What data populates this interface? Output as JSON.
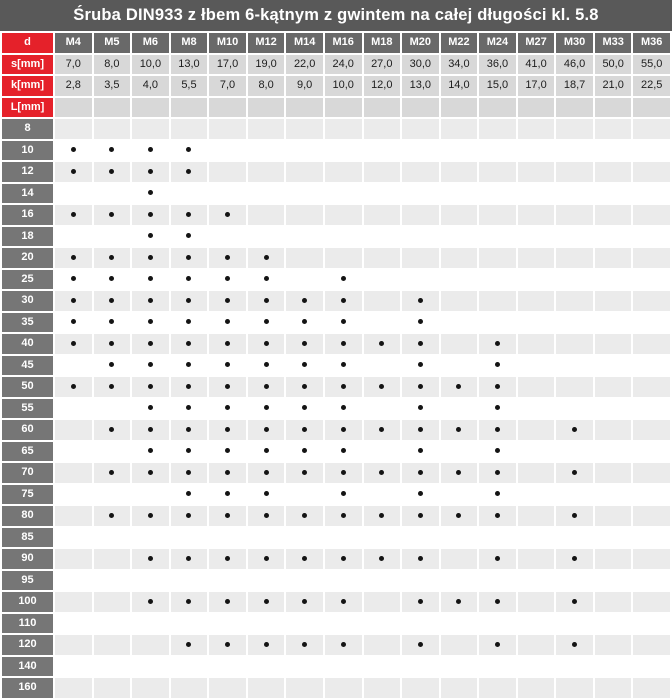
{
  "title": "Śruba DIN933 z łbem 6-kątnym z gwintem na całej długości kl. 5.8",
  "colors": {
    "title_bar": "#595959",
    "header_gray": "#696969",
    "label_gray": "#767676",
    "red_accent": "#e5212a",
    "spec_row": "#d8d8d8",
    "row_alt": "#ebebeb",
    "row_plain": "#ffffff",
    "dot": "#141414"
  },
  "table": {
    "d_label": "d",
    "diameters": [
      "M4",
      "M5",
      "M6",
      "M8",
      "M10",
      "M12",
      "M14",
      "M16",
      "M18",
      "M20",
      "M22",
      "M24",
      "M27",
      "M30",
      "M33",
      "M36"
    ],
    "s_label": "s[mm]",
    "s_values": [
      "7,0",
      "8,0",
      "10,0",
      "13,0",
      "17,0",
      "19,0",
      "22,0",
      "24,0",
      "27,0",
      "30,0",
      "34,0",
      "36,0",
      "41,0",
      "46,0",
      "50,0",
      "55,0"
    ],
    "k_label": "k[mm]",
    "k_values": [
      "2,8",
      "3,5",
      "4,0",
      "5,5",
      "7,0",
      "8,0",
      "9,0",
      "10,0",
      "12,0",
      "13,0",
      "14,0",
      "15,0",
      "17,0",
      "18,7",
      "21,0",
      "22,5"
    ],
    "l_label": "L[mm]",
    "lengths": [
      {
        "length": "8",
        "dots": []
      },
      {
        "length": "10",
        "dots": [
          "M4",
          "M5",
          "M6",
          "M8"
        ]
      },
      {
        "length": "12",
        "dots": [
          "M4",
          "M5",
          "M6",
          "M8"
        ]
      },
      {
        "length": "14",
        "dots": [
          "M6"
        ]
      },
      {
        "length": "16",
        "dots": [
          "M4",
          "M5",
          "M6",
          "M8",
          "M10"
        ]
      },
      {
        "length": "18",
        "dots": [
          "M6",
          "M8"
        ]
      },
      {
        "length": "20",
        "dots": [
          "M4",
          "M5",
          "M6",
          "M8",
          "M10",
          "M12"
        ]
      },
      {
        "length": "25",
        "dots": [
          "M4",
          "M5",
          "M6",
          "M8",
          "M10",
          "M12",
          "M16"
        ]
      },
      {
        "length": "30",
        "dots": [
          "M4",
          "M5",
          "M6",
          "M8",
          "M10",
          "M12",
          "M14",
          "M16",
          "M20"
        ]
      },
      {
        "length": "35",
        "dots": [
          "M4",
          "M5",
          "M6",
          "M8",
          "M10",
          "M12",
          "M14",
          "M16",
          "M20"
        ]
      },
      {
        "length": "40",
        "dots": [
          "M4",
          "M5",
          "M6",
          "M8",
          "M10",
          "M12",
          "M14",
          "M16",
          "M18",
          "M20",
          "M24"
        ]
      },
      {
        "length": "45",
        "dots": [
          "M5",
          "M6",
          "M8",
          "M10",
          "M12",
          "M14",
          "M16",
          "M20",
          "M24"
        ]
      },
      {
        "length": "50",
        "dots": [
          "M4",
          "M5",
          "M6",
          "M8",
          "M10",
          "M12",
          "M14",
          "M16",
          "M18",
          "M20",
          "M22",
          "M24"
        ]
      },
      {
        "length": "55",
        "dots": [
          "M6",
          "M8",
          "M10",
          "M12",
          "M14",
          "M16",
          "M20",
          "M24"
        ]
      },
      {
        "length": "60",
        "dots": [
          "M5",
          "M6",
          "M8",
          "M10",
          "M12",
          "M14",
          "M16",
          "M18",
          "M20",
          "M22",
          "M24",
          "M30"
        ]
      },
      {
        "length": "65",
        "dots": [
          "M6",
          "M8",
          "M10",
          "M12",
          "M14",
          "M16",
          "M20",
          "M24"
        ]
      },
      {
        "length": "70",
        "dots": [
          "M5",
          "M6",
          "M8",
          "M10",
          "M12",
          "M14",
          "M16",
          "M18",
          "M20",
          "M22",
          "M24",
          "M30"
        ]
      },
      {
        "length": "75",
        "dots": [
          "M8",
          "M10",
          "M12",
          "M16",
          "M20",
          "M24"
        ]
      },
      {
        "length": "80",
        "dots": [
          "M5",
          "M6",
          "M8",
          "M10",
          "M12",
          "M14",
          "M16",
          "M18",
          "M20",
          "M22",
          "M24",
          "M30"
        ]
      },
      {
        "length": "85",
        "dots": []
      },
      {
        "length": "90",
        "dots": [
          "M6",
          "M8",
          "M10",
          "M12",
          "M14",
          "M16",
          "M18",
          "M20",
          "M24",
          "M30"
        ]
      },
      {
        "length": "95",
        "dots": []
      },
      {
        "length": "100",
        "dots": [
          "M6",
          "M8",
          "M10",
          "M12",
          "M14",
          "M16",
          "M20",
          "M22",
          "M24",
          "M30"
        ]
      },
      {
        "length": "110",
        "dots": []
      },
      {
        "length": "120",
        "dots": [
          "M8",
          "M10",
          "M12",
          "M14",
          "M16",
          "M20",
          "M24",
          "M30"
        ]
      },
      {
        "length": "140",
        "dots": []
      },
      {
        "length": "160",
        "dots": []
      }
    ]
  }
}
